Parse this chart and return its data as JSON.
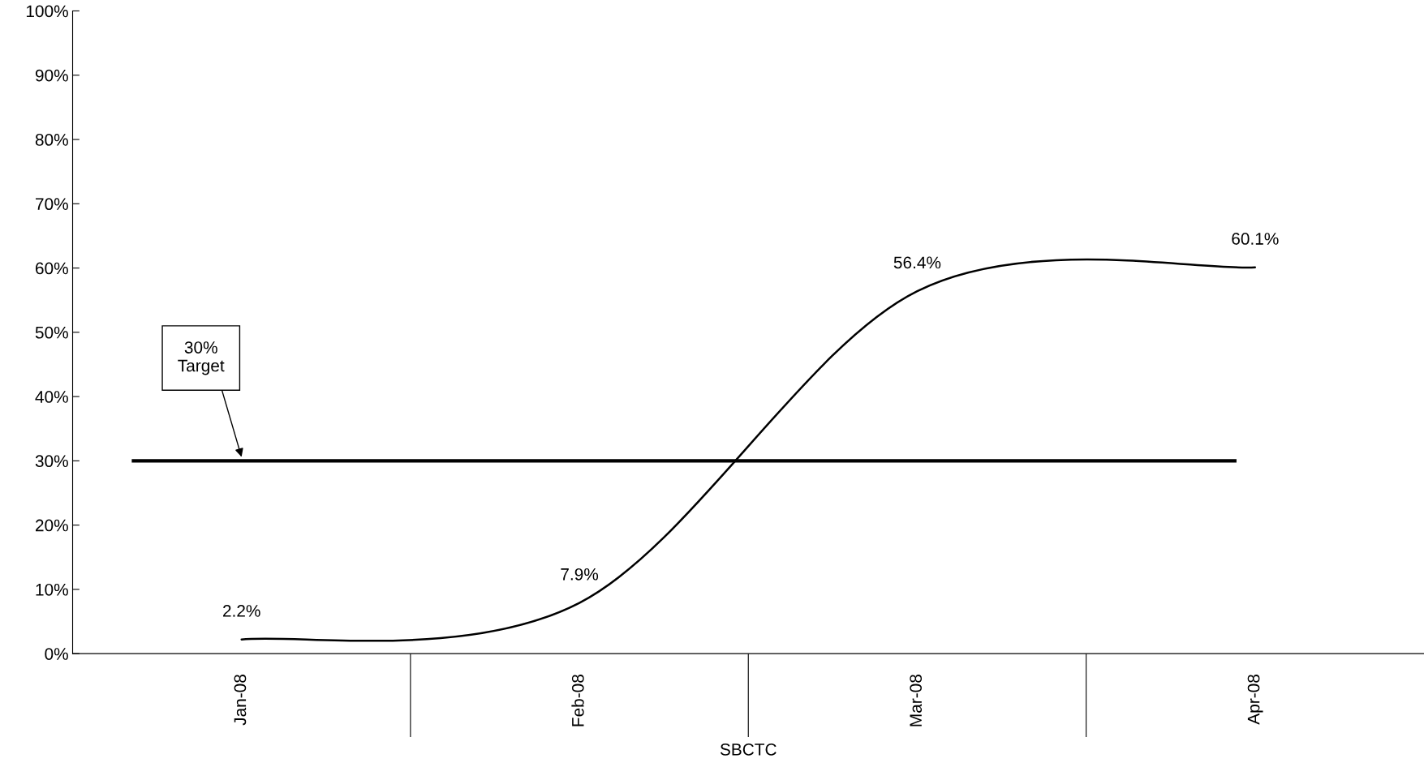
{
  "chart_data": {
    "type": "line",
    "xlabel": "SBCTC",
    "categories": [
      "Jan-08",
      "Feb-08",
      "Mar-08",
      "Apr-08"
    ],
    "series": [
      {
        "color": "#000000",
        "values": [
          2.2,
          7.9,
          56.4,
          60.1
        ],
        "value_labels": [
          "2.2%",
          "7.9%",
          "56.4%",
          "60.1%"
        ]
      }
    ],
    "ylim": [
      0,
      100
    ],
    "yticks": [
      {
        "value": 0,
        "label": "0%"
      },
      {
        "value": 10,
        "label": "10%"
      },
      {
        "value": 20,
        "label": "20%"
      },
      {
        "value": 30,
        "label": "30%"
      },
      {
        "value": 40,
        "label": "40%"
      },
      {
        "value": 50,
        "label": "50%"
      },
      {
        "value": 60,
        "label": "60%"
      },
      {
        "value": 70,
        "label": "70%"
      },
      {
        "value": 80,
        "label": "80%"
      },
      {
        "value": 90,
        "label": "90%"
      },
      {
        "value": 100,
        "label": "100%"
      }
    ],
    "ref_lines": [
      {
        "axis": "y",
        "value": 30,
        "label": "30%\nTarget",
        "color": "#000000"
      }
    ],
    "grid": false,
    "marker": "none",
    "line_style": "solid"
  }
}
